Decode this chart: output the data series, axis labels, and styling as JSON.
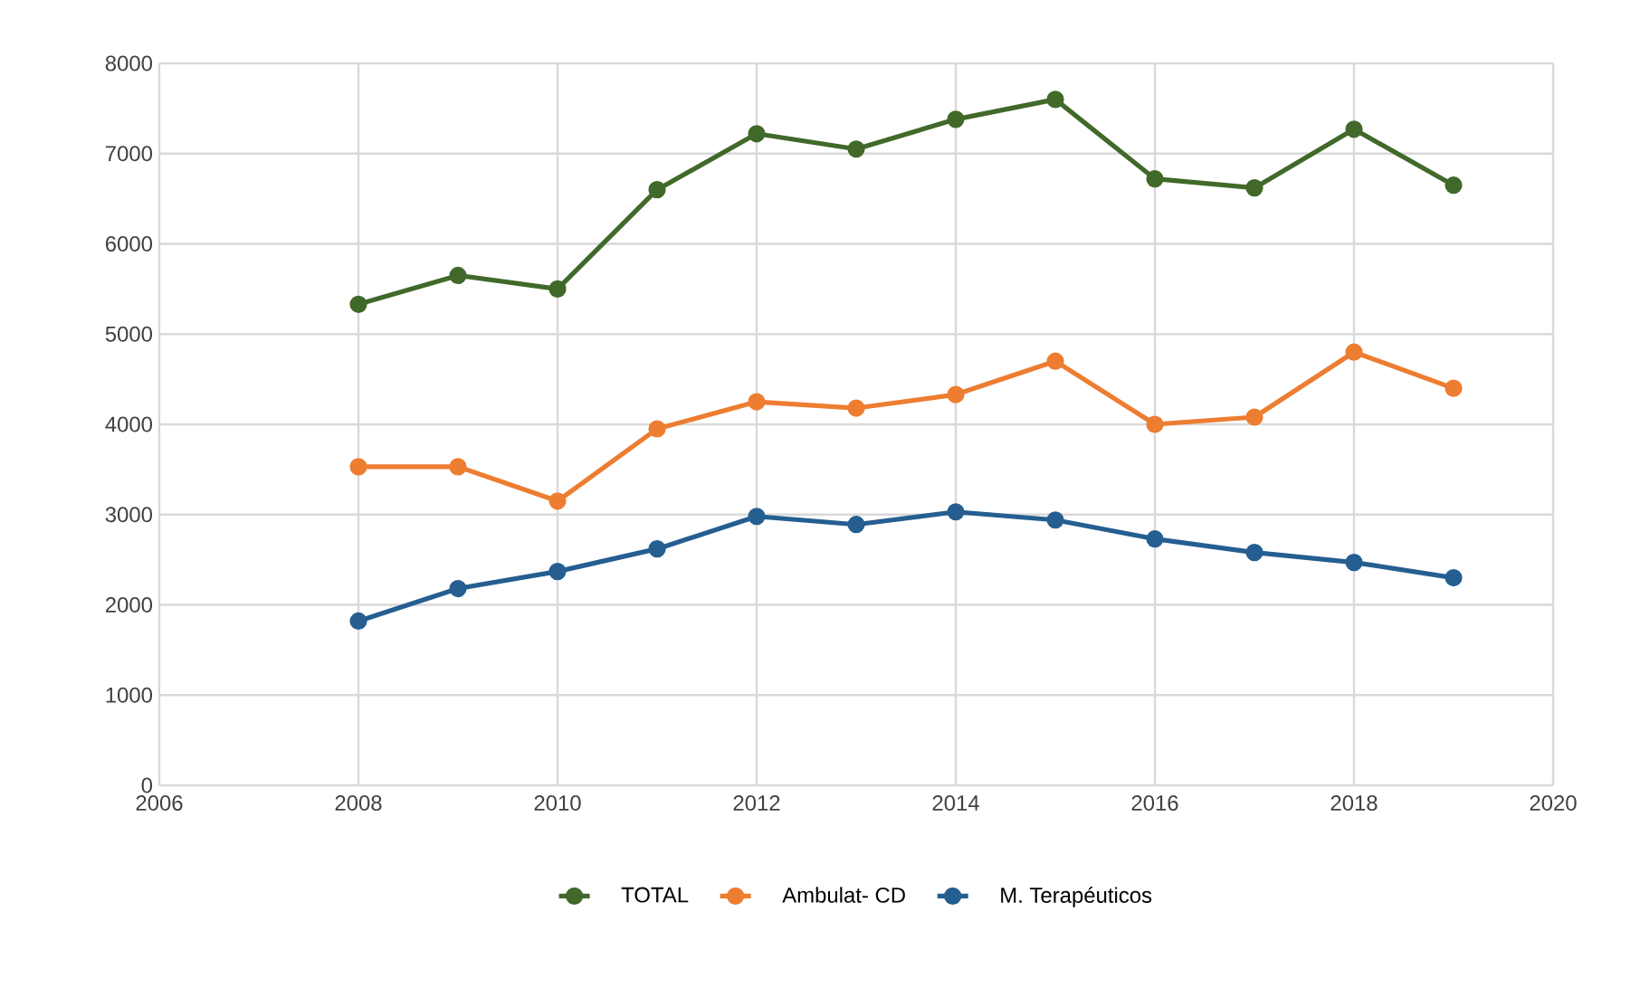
{
  "chart_data": {
    "type": "line",
    "x": [
      2008,
      2009,
      2010,
      2011,
      2012,
      2013,
      2014,
      2015,
      2016,
      2017,
      2018,
      2019
    ],
    "series": [
      {
        "name": "TOTAL",
        "color": "#41692a",
        "values": [
          5330,
          5650,
          5500,
          6600,
          7220,
          7050,
          7380,
          7600,
          6720,
          6620,
          7270,
          6650
        ]
      },
      {
        "name": "Ambulat- CD",
        "color": "#ed7d31",
        "values": [
          3530,
          3530,
          3150,
          3950,
          4250,
          4180,
          4330,
          4700,
          4000,
          4080,
          4800,
          4400
        ]
      },
      {
        "name": "M. Terapéuticos",
        "color": "#255e91",
        "values": [
          1820,
          2180,
          2370,
          2620,
          2980,
          2890,
          3030,
          2940,
          2730,
          2580,
          2470,
          2300
        ]
      }
    ],
    "xlim": [
      2006,
      2020
    ],
    "xticks": [
      2006,
      2008,
      2010,
      2012,
      2014,
      2016,
      2018,
      2020
    ],
    "ylim": [
      0,
      8000
    ],
    "yticks": [
      0,
      1000,
      2000,
      3000,
      4000,
      5000,
      6000,
      7000,
      8000
    ],
    "grid": true,
    "legend": "bottom",
    "marker": "circle",
    "line_style": "solid"
  }
}
